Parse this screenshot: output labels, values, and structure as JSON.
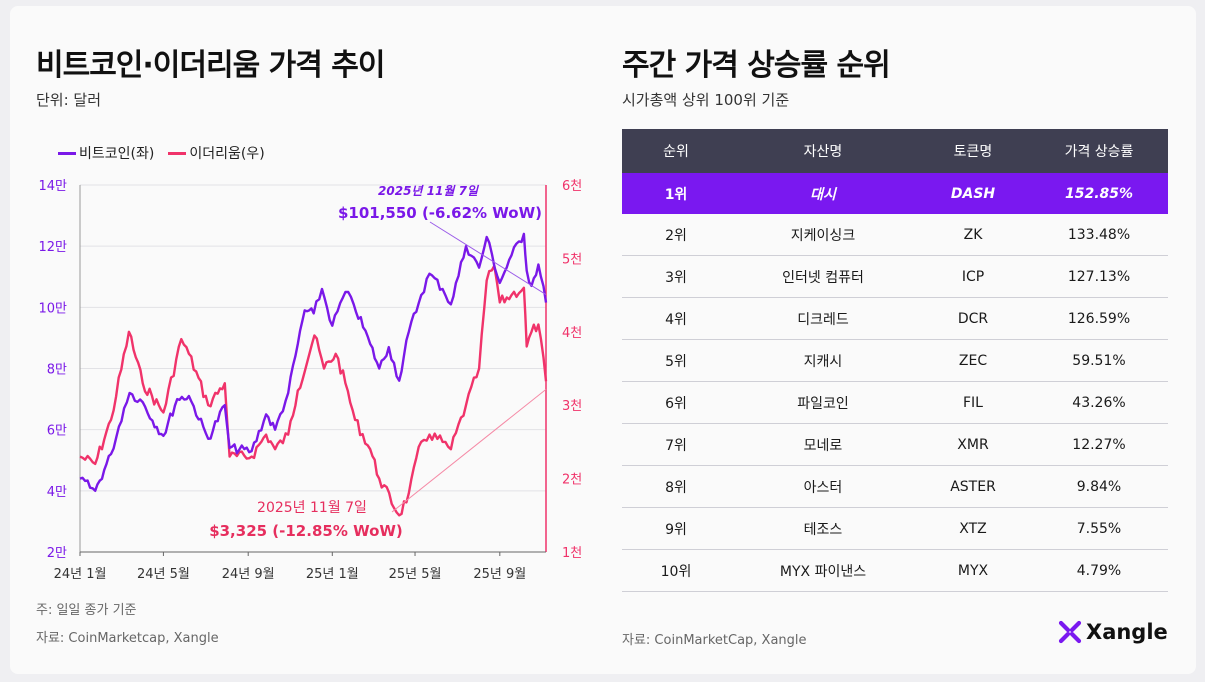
{
  "left_panel": {
    "title": "비트코인·이더리움 가격 추이",
    "unit": "단위: 달러",
    "legend": [
      {
        "label": "비트코인(좌)",
        "color": "#7a18e8"
      },
      {
        "label": "이더리움(우)",
        "color": "#f0336a"
      }
    ],
    "note": "주: 일일 종가 기준",
    "source": "자료: CoinMarketcap, Xangle"
  },
  "right_panel": {
    "title": "주간 가격 상승률 순위",
    "subtitle": "시가총액 상위 100위 기준",
    "headers": [
      "순위",
      "자산명",
      "토큰명",
      "가격 상승률"
    ],
    "rows": [
      [
        "1위",
        "대시",
        "DASH",
        "152.85%"
      ],
      [
        "2위",
        "지케이싱크",
        "ZK",
        "133.48%"
      ],
      [
        "3위",
        "인터넷 컴퓨터",
        "ICP",
        "127.13%"
      ],
      [
        "4위",
        "디크레드",
        "DCR",
        "126.59%"
      ],
      [
        "5위",
        "지캐시",
        "ZEC",
        "59.51%"
      ],
      [
        "6위",
        "파일코인",
        "FIL",
        "43.26%"
      ],
      [
        "7위",
        "모네로",
        "XMR",
        "12.27%"
      ],
      [
        "8위",
        "아스터",
        "ASTER",
        "9.84%"
      ],
      [
        "9위",
        "테조스",
        "XTZ",
        "7.55%"
      ],
      [
        "10위",
        "MYX 파이낸스",
        "MYX",
        "4.79%"
      ]
    ],
    "source": "자료: CoinMarketCap, Xangle"
  },
  "brand": {
    "name": "Xangle",
    "accent": "#7a18f0"
  },
  "chart_data": {
    "type": "line",
    "x_ticks": [
      "24년 1월",
      "24년 5월",
      "24년 9월",
      "25년 1월",
      "25년 5월",
      "25년 9월"
    ],
    "y_left": {
      "ticks": [
        "2만",
        "4만",
        "6만",
        "8만",
        "10만",
        "12만",
        "14만"
      ],
      "range": [
        20000,
        140000
      ]
    },
    "y_right": {
      "ticks": [
        "1천",
        "2천",
        "3천",
        "4천",
        "5천",
        "6천"
      ],
      "range": [
        1000,
        6000
      ]
    },
    "series": [
      {
        "name": "비트코인(좌)",
        "axis": "left",
        "color": "#7a18e8",
        "x": [
          "2024-01-01",
          "2024-01-23",
          "2024-02-15",
          "2024-03-05",
          "2024-03-13",
          "2024-04-01",
          "2024-04-15",
          "2024-05-01",
          "2024-05-21",
          "2024-06-07",
          "2024-07-05",
          "2024-07-29",
          "2024-08-05",
          "2024-09-06",
          "2024-09-27",
          "2024-10-10",
          "2024-10-29",
          "2024-11-12",
          "2024-11-22",
          "2024-12-05",
          "2024-12-17",
          "2025-01-01",
          "2025-01-20",
          "2025-02-01",
          "2025-02-25",
          "2025-03-10",
          "2025-03-24",
          "2025-04-08",
          "2025-04-22",
          "2025-05-10",
          "2025-05-22",
          "2025-06-10",
          "2025-06-22",
          "2025-07-14",
          "2025-08-02",
          "2025-08-13",
          "2025-09-01",
          "2025-09-18",
          "2025-10-06",
          "2025-10-10",
          "2025-10-17",
          "2025-10-27",
          "2025-11-07"
        ],
        "y": [
          44000,
          40000,
          52000,
          67000,
          72000,
          69000,
          63000,
          58000,
          70000,
          71000,
          57000,
          68000,
          54000,
          53000,
          65000,
          60000,
          72000,
          88000,
          99000,
          98000,
          106000,
          94000,
          105000,
          101000,
          88000,
          80000,
          87000,
          76000,
          92000,
          104000,
          111000,
          106000,
          101000,
          120000,
          113000,
          123000,
          108000,
          117000,
          124000,
          112000,
          107000,
          114000,
          101550
        ]
      },
      {
        "name": "이더리움(우)",
        "axis": "right",
        "color": "#f0336a",
        "x": [
          "2024-01-01",
          "2024-01-23",
          "2024-02-15",
          "2024-03-12",
          "2024-04-01",
          "2024-05-01",
          "2024-05-27",
          "2024-06-07",
          "2024-07-05",
          "2024-07-29",
          "2024-08-05",
          "2024-09-06",
          "2024-09-27",
          "2024-10-10",
          "2024-10-29",
          "2024-11-12",
          "2024-12-06",
          "2024-12-20",
          "2025-01-06",
          "2025-01-20",
          "2025-02-03",
          "2025-02-25",
          "2025-03-10",
          "2025-04-08",
          "2025-04-22",
          "2025-05-10",
          "2025-05-22",
          "2025-06-10",
          "2025-06-22",
          "2025-07-14",
          "2025-08-02",
          "2025-08-13",
          "2025-08-24",
          "2025-09-01",
          "2025-09-18",
          "2025-10-06",
          "2025-10-10",
          "2025-10-17",
          "2025-10-27",
          "2025-11-07"
        ],
        "y": [
          2300,
          2200,
          2800,
          4000,
          3300,
          2900,
          3900,
          3700,
          3000,
          3300,
          2300,
          2300,
          2600,
          2400,
          2600,
          3200,
          3950,
          3500,
          3700,
          3300,
          2800,
          2400,
          2000,
          1500,
          1800,
          2500,
          2600,
          2500,
          2400,
          3000,
          3500,
          4700,
          4900,
          4400,
          4500,
          4600,
          3800,
          4000,
          4100,
          3325
        ]
      }
    ],
    "annotations": [
      {
        "date": "2025년 11월 7일",
        "text": "$101,550 (-6.62% WoW)",
        "series": "비트코인(좌)"
      },
      {
        "date": "2025년 11월 7일",
        "text": "$3,325 (-12.85% WoW)",
        "series": "이더리움(우)"
      }
    ]
  }
}
